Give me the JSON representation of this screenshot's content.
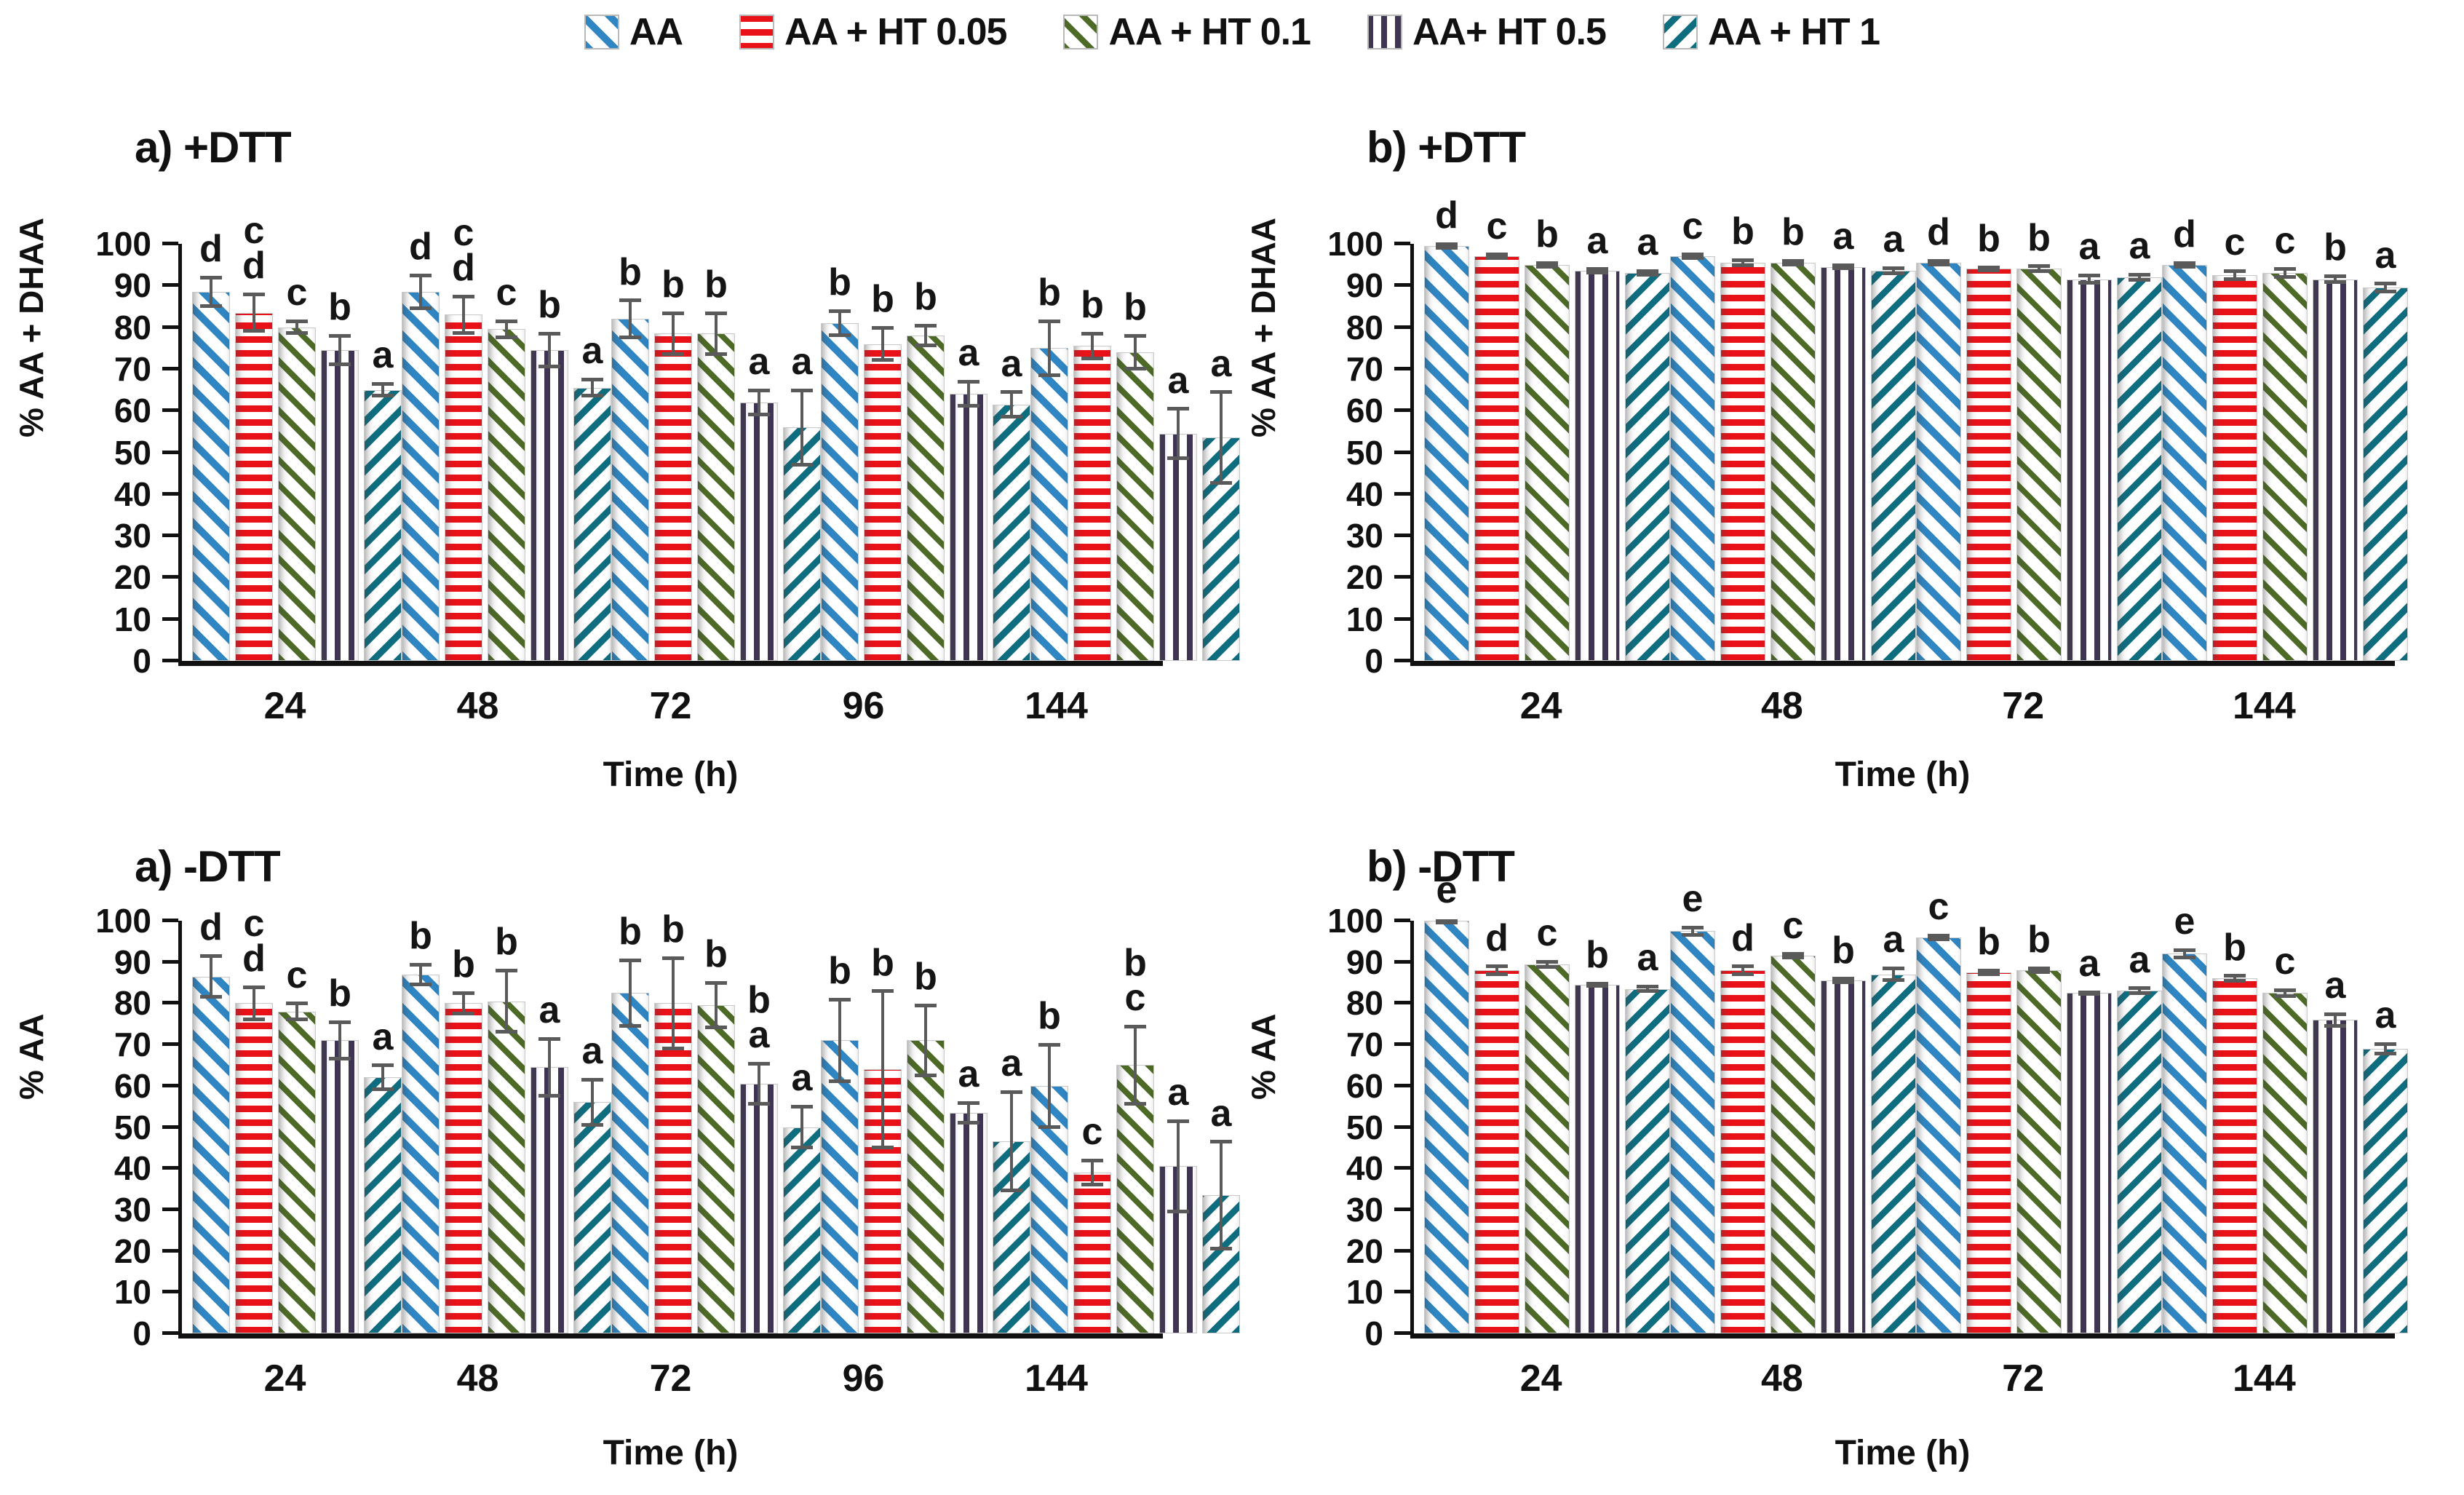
{
  "colors": {
    "aa": "#2f86c3",
    "ht005": "#e91219",
    "ht01": "#4d6b26",
    "ht05": "#3f3553",
    "ht1": "#0f6d80"
  },
  "legend": {
    "items": [
      {
        "label": "AA",
        "series": "aa"
      },
      {
        "label": "AA + HT 0.05",
        "series": "ht005"
      },
      {
        "label": "AA + HT 0.1",
        "series": "ht01"
      },
      {
        "label": "AA+ HT 0.5",
        "series": "ht05"
      },
      {
        "label": "AA + HT 1",
        "series": "ht1"
      }
    ]
  },
  "chart_data": [
    {
      "id": "a_plus_dtt",
      "type": "bar",
      "title": "a) +DTT",
      "ylabel": "% AA + DHAA",
      "xlabel": "Time (h)",
      "ylim": [
        0,
        100
      ],
      "yticks": [
        0,
        10,
        20,
        30,
        40,
        50,
        60,
        70,
        80,
        90,
        100
      ],
      "grid": false,
      "legend_position": "top-center-shared",
      "categories": [
        "24",
        "48",
        "72",
        "96",
        "144"
      ],
      "series": [
        {
          "name": "AA",
          "key": "aa",
          "values": [
            88.5,
            88.5,
            82,
            81,
            75
          ],
          "errors": [
            3.5,
            4,
            4.5,
            3,
            6.5
          ],
          "letters": [
            "d",
            "d",
            "b",
            "b",
            "b"
          ]
        },
        {
          "name": "AA + HT 0.05",
          "key": "ht005",
          "values": [
            83.5,
            83,
            78.5,
            76,
            75.5
          ],
          "errors": [
            4.5,
            4.5,
            5,
            4,
            3
          ],
          "letters": [
            "cd",
            "cd",
            "b",
            "b",
            "b"
          ]
        },
        {
          "name": "AA + HT 0.1",
          "key": "ht01",
          "values": [
            80,
            79.5,
            78.5,
            78,
            74
          ],
          "errors": [
            1.5,
            2,
            5,
            2.5,
            4
          ],
          "letters": [
            "c",
            "c",
            "b",
            "b",
            "b"
          ]
        },
        {
          "name": "AA+ HT 0.5",
          "key": "ht05",
          "values": [
            74.5,
            74.5,
            62,
            64,
            54.5
          ],
          "errors": [
            3.5,
            4,
            3,
            3,
            6
          ],
          "letters": [
            "b",
            "b",
            "a",
            "a",
            "a"
          ]
        },
        {
          "name": "AA + HT 1",
          "key": "ht1",
          "values": [
            65,
            65.5,
            56,
            61.5,
            53.5
          ],
          "errors": [
            1.5,
            2,
            9,
            3,
            11
          ],
          "letters": [
            "a",
            "a",
            "a",
            "a",
            "a"
          ]
        }
      ]
    },
    {
      "id": "b_plus_dtt",
      "type": "bar",
      "title": "b) +DTT",
      "ylabel": "% AA + DHAA",
      "xlabel": "Time (h)",
      "ylim": [
        0,
        100
      ],
      "yticks": [
        0,
        10,
        20,
        30,
        40,
        50,
        60,
        70,
        80,
        90,
        100
      ],
      "grid": false,
      "legend_position": "top-center-shared",
      "categories": [
        "24",
        "48",
        "72",
        "144"
      ],
      "series": [
        {
          "name": "AA",
          "key": "aa",
          "values": [
            99.5,
            97,
            95.5,
            95
          ],
          "errors": [
            0.5,
            0.5,
            0.5,
            0.5
          ],
          "letters": [
            "d",
            "c",
            "d",
            "d"
          ]
        },
        {
          "name": "AA + HT 0.05",
          "key": "ht005",
          "values": [
            97,
            95.5,
            94,
            92.5
          ],
          "errors": [
            0.5,
            0.7,
            0.5,
            1
          ],
          "letters": [
            "c",
            "b",
            "b",
            "c"
          ]
        },
        {
          "name": "AA + HT 0.1",
          "key": "ht01",
          "values": [
            95,
            95.5,
            94,
            93
          ],
          "errors": [
            0.5,
            0.5,
            0.7,
            1
          ],
          "letters": [
            "b",
            "b",
            "b",
            "c"
          ]
        },
        {
          "name": "AA+ HT 0.5",
          "key": "ht05",
          "values": [
            93.5,
            94.5,
            91.5,
            91.5
          ],
          "errors": [
            0.5,
            0.5,
            1,
            0.8
          ],
          "letters": [
            "a",
            "a",
            "a",
            "b"
          ]
        },
        {
          "name": "AA + HT 1",
          "key": "ht1",
          "values": [
            93,
            93.5,
            92,
            89.5
          ],
          "errors": [
            0.5,
            0.7,
            0.7,
            1
          ],
          "letters": [
            "a",
            "a",
            "a",
            "a"
          ]
        }
      ]
    },
    {
      "id": "a_minus_dtt",
      "type": "bar",
      "title": "a) -DTT",
      "ylabel": "% AA",
      "xlabel": "Time (h)",
      "ylim": [
        0,
        100
      ],
      "yticks": [
        0,
        10,
        20,
        30,
        40,
        50,
        60,
        70,
        80,
        90,
        100
      ],
      "grid": false,
      "legend_position": "top-center-shared",
      "categories": [
        "24",
        "48",
        "72",
        "96",
        "144"
      ],
      "series": [
        {
          "name": "AA",
          "key": "aa",
          "values": [
            86.5,
            87,
            82.5,
            71,
            60
          ],
          "errors": [
            5,
            2.5,
            8,
            10,
            10
          ],
          "letters": [
            "d",
            "b",
            "b",
            "b",
            "b"
          ]
        },
        {
          "name": "AA + HT 0.05",
          "key": "ht005",
          "values": [
            80,
            80,
            80,
            64,
            39
          ],
          "errors": [
            4,
            2.5,
            11,
            19,
            3
          ],
          "letters": [
            "cd",
            "b",
            "b",
            "b",
            "c"
          ]
        },
        {
          "name": "AA + HT 0.1",
          "key": "ht01",
          "values": [
            78,
            80.5,
            79.5,
            71,
            65
          ],
          "errors": [
            2,
            7.5,
            5.5,
            8.5,
            9.5
          ],
          "letters": [
            "c",
            "b",
            "b",
            "b",
            "bc"
          ]
        },
        {
          "name": "AA+ HT 0.5",
          "key": "ht05",
          "values": [
            71,
            64.5,
            60.5,
            53.5,
            40.5
          ],
          "errors": [
            4.5,
            7,
            5,
            2.5,
            11
          ],
          "letters": [
            "b",
            "a",
            "ba",
            "a",
            "a"
          ]
        },
        {
          "name": "AA + HT 1",
          "key": "ht1",
          "values": [
            62,
            56,
            50,
            46.5,
            33.5
          ],
          "errors": [
            3,
            5.5,
            5,
            12,
            13
          ],
          "letters": [
            "a",
            "a",
            "a",
            "a",
            "a"
          ]
        }
      ]
    },
    {
      "id": "b_minus_dtt",
      "type": "bar",
      "title": "b) -DTT",
      "ylabel": "% AA",
      "xlabel": "Time (h)",
      "ylim": [
        0,
        100
      ],
      "yticks": [
        0,
        10,
        20,
        30,
        40,
        50,
        60,
        70,
        80,
        90,
        100
      ],
      "grid": false,
      "legend_position": "top-center-shared",
      "categories": [
        "24",
        "48",
        "72",
        "144"
      ],
      "series": [
        {
          "name": "AA",
          "key": "aa",
          "values": [
            100,
            97.5,
            96,
            92
          ],
          "errors": [
            0.5,
            1,
            0.5,
            1
          ],
          "letters": [
            "e",
            "e",
            "c",
            "e"
          ]
        },
        {
          "name": "AA + HT 0.05",
          "key": "ht005",
          "values": [
            88,
            88,
            87.5,
            86
          ],
          "errors": [
            1,
            1,
            0.5,
            0.7
          ],
          "letters": [
            "d",
            "d",
            "b",
            "b"
          ]
        },
        {
          "name": "AA + HT 0.1",
          "key": "ht01",
          "values": [
            89.5,
            91.5,
            88,
            82.5
          ],
          "errors": [
            0.7,
            0.5,
            0.5,
            0.8
          ],
          "letters": [
            "c",
            "c",
            "b",
            "c"
          ]
        },
        {
          "name": "AA+ HT 0.5",
          "key": "ht05",
          "values": [
            84.5,
            85.5,
            82.5,
            76
          ],
          "errors": [
            0.4,
            0.5,
            0.3,
            1.5
          ],
          "letters": [
            "b",
            "b",
            "a",
            "a"
          ]
        },
        {
          "name": "AA + HT 1",
          "key": "ht1",
          "values": [
            83.5,
            87,
            83,
            69
          ],
          "errors": [
            0.6,
            1.5,
            0.7,
            1.2
          ],
          "letters": [
            "a",
            "a",
            "a",
            "a"
          ]
        }
      ]
    }
  ]
}
